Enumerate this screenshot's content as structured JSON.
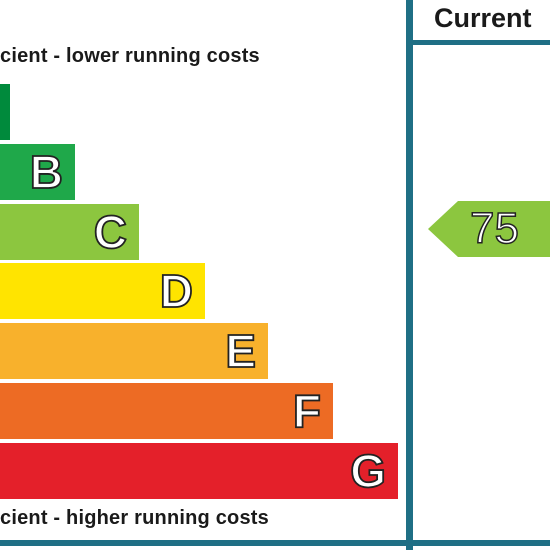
{
  "captions": {
    "top": "cient - lower running costs",
    "bottom": "cient - higher running costs"
  },
  "column_header": "Current",
  "bands": [
    {
      "letter": "",
      "color": "#008a3c"
    },
    {
      "letter": "B",
      "color": "#1fa84a"
    },
    {
      "letter": "C",
      "color": "#8cc63f"
    },
    {
      "letter": "D",
      "color": "#ffe400"
    },
    {
      "letter": "E",
      "color": "#f8b12c"
    },
    {
      "letter": "F",
      "color": "#ed6b24"
    },
    {
      "letter": "G",
      "color": "#e4202a"
    }
  ],
  "current_rating": {
    "value": "75",
    "color": "#8cc63f"
  }
}
